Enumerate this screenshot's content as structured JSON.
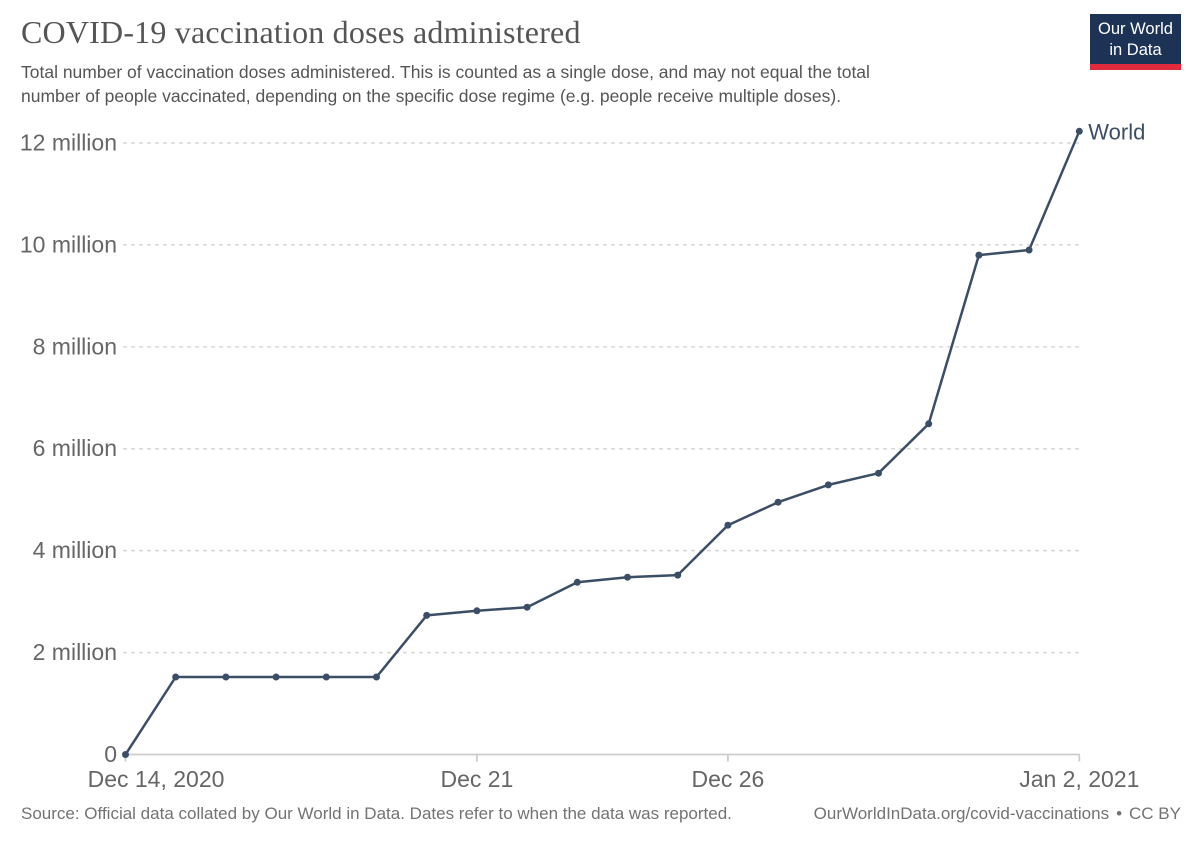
{
  "header": {
    "title": "COVID-19 vaccination doses administered",
    "subtitle_line1": "Total number of vaccination doses administered. This is counted as a single dose, and may not equal the total",
    "subtitle_line2": "number of people vaccinated, depending on the specific dose regime (e.g. people receive multiple doses).",
    "logo": {
      "line1": "Our World",
      "line2": "in Data",
      "bg_color": "#1d3356",
      "bar_color": "#e02b3f"
    }
  },
  "footer": {
    "source": "Source: Official data collated by Our World in Data. Dates refer to when the data was reported.",
    "link": "OurWorldInData.org/covid-vaccinations",
    "separator": "•",
    "license": "CC BY"
  },
  "chart_data": {
    "type": "line",
    "title": "COVID-19 vaccination doses administered",
    "xlabel": "",
    "ylabel": "",
    "unit": "doses",
    "x": [
      "Dec 14, 2020",
      "Dec 15, 2020",
      "Dec 16, 2020",
      "Dec 17, 2020",
      "Dec 18, 2020",
      "Dec 19, 2020",
      "Dec 20, 2020",
      "Dec 21, 2020",
      "Dec 22, 2020",
      "Dec 23, 2020",
      "Dec 24, 2020",
      "Dec 25, 2020",
      "Dec 26, 2020",
      "Dec 27, 2020",
      "Dec 28, 2020",
      "Dec 29, 2020",
      "Dec 30, 2020",
      "Dec 31, 2020",
      "Jan 1, 2021",
      "Jan 2, 2021"
    ],
    "series": [
      {
        "name": "World",
        "color": "#3c4e66",
        "values_millions": [
          0,
          1.52,
          1.52,
          1.52,
          1.52,
          1.52,
          2.73,
          2.82,
          2.89,
          3.38,
          3.48,
          3.52,
          4.5,
          4.95,
          5.29,
          5.52,
          6.49,
          9.8,
          9.9,
          12.23
        ]
      }
    ],
    "ylim": [
      0,
      12.4
    ],
    "ytick_interval_millions": 2,
    "yticks": [
      {
        "value": 0,
        "label": "0"
      },
      {
        "value": 2,
        "label": "2 million"
      },
      {
        "value": 4,
        "label": "4 million"
      },
      {
        "value": 6,
        "label": "6 million"
      },
      {
        "value": 8,
        "label": "8 million"
      },
      {
        "value": 10,
        "label": "10 million"
      },
      {
        "value": 12,
        "label": "12 million"
      }
    ],
    "xticks": [
      {
        "index": 0,
        "label": "Dec 14, 2020"
      },
      {
        "index": 7,
        "label": "Dec 21"
      },
      {
        "index": 12,
        "label": "Dec 26"
      },
      {
        "index": 19,
        "label": "Jan 2, 2021"
      }
    ],
    "grid": "horizontal dashed",
    "legend": "end-of-line label",
    "style": {
      "grid_color": "#d9d9d9",
      "axis_color": "#cccccc",
      "tick_label_color": "#666666",
      "marker_radius": 3.5
    }
  }
}
